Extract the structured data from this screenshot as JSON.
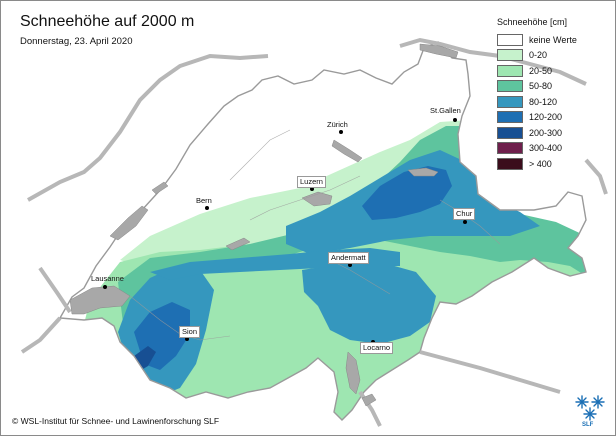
{
  "map": {
    "title": "Schneehöhe auf 2000 m",
    "date": "Donnerstag, 23. April 2020",
    "copyright": "© WSL-Institut für Schnee- und Lawinenforschung SLF",
    "logo_text": "SLF"
  },
  "legend": {
    "title": "Schneehöhe [cm]",
    "items": [
      {
        "label": "keine Werte",
        "color": "#ffffff"
      },
      {
        "label": "0-20",
        "color": "#c6f2cc"
      },
      {
        "label": "20-50",
        "color": "#9ee6b1"
      },
      {
        "label": "50-80",
        "color": "#5ec49e"
      },
      {
        "label": "80-120",
        "color": "#3597be"
      },
      {
        "label": "120-200",
        "color": "#1e6fb3"
      },
      {
        "label": "200-300",
        "color": "#174f93"
      },
      {
        "label": "300-400",
        "color": "#6e1f4c"
      },
      {
        "label": "> 400",
        "color": "#3b0d1c"
      }
    ]
  },
  "cities": {
    "stgallen": "St.Gallen",
    "zurich": "Zürich",
    "luzern": "Luzern",
    "bern": "Bern",
    "chur": "Chur",
    "andermatt": "Andermatt",
    "lausanne": "Lausanne",
    "sion": "Sion",
    "locarno": "Locarno"
  },
  "colors": {
    "lake": "#a8a8a8",
    "border": "#b7b7b7",
    "background": "#ffffff"
  }
}
